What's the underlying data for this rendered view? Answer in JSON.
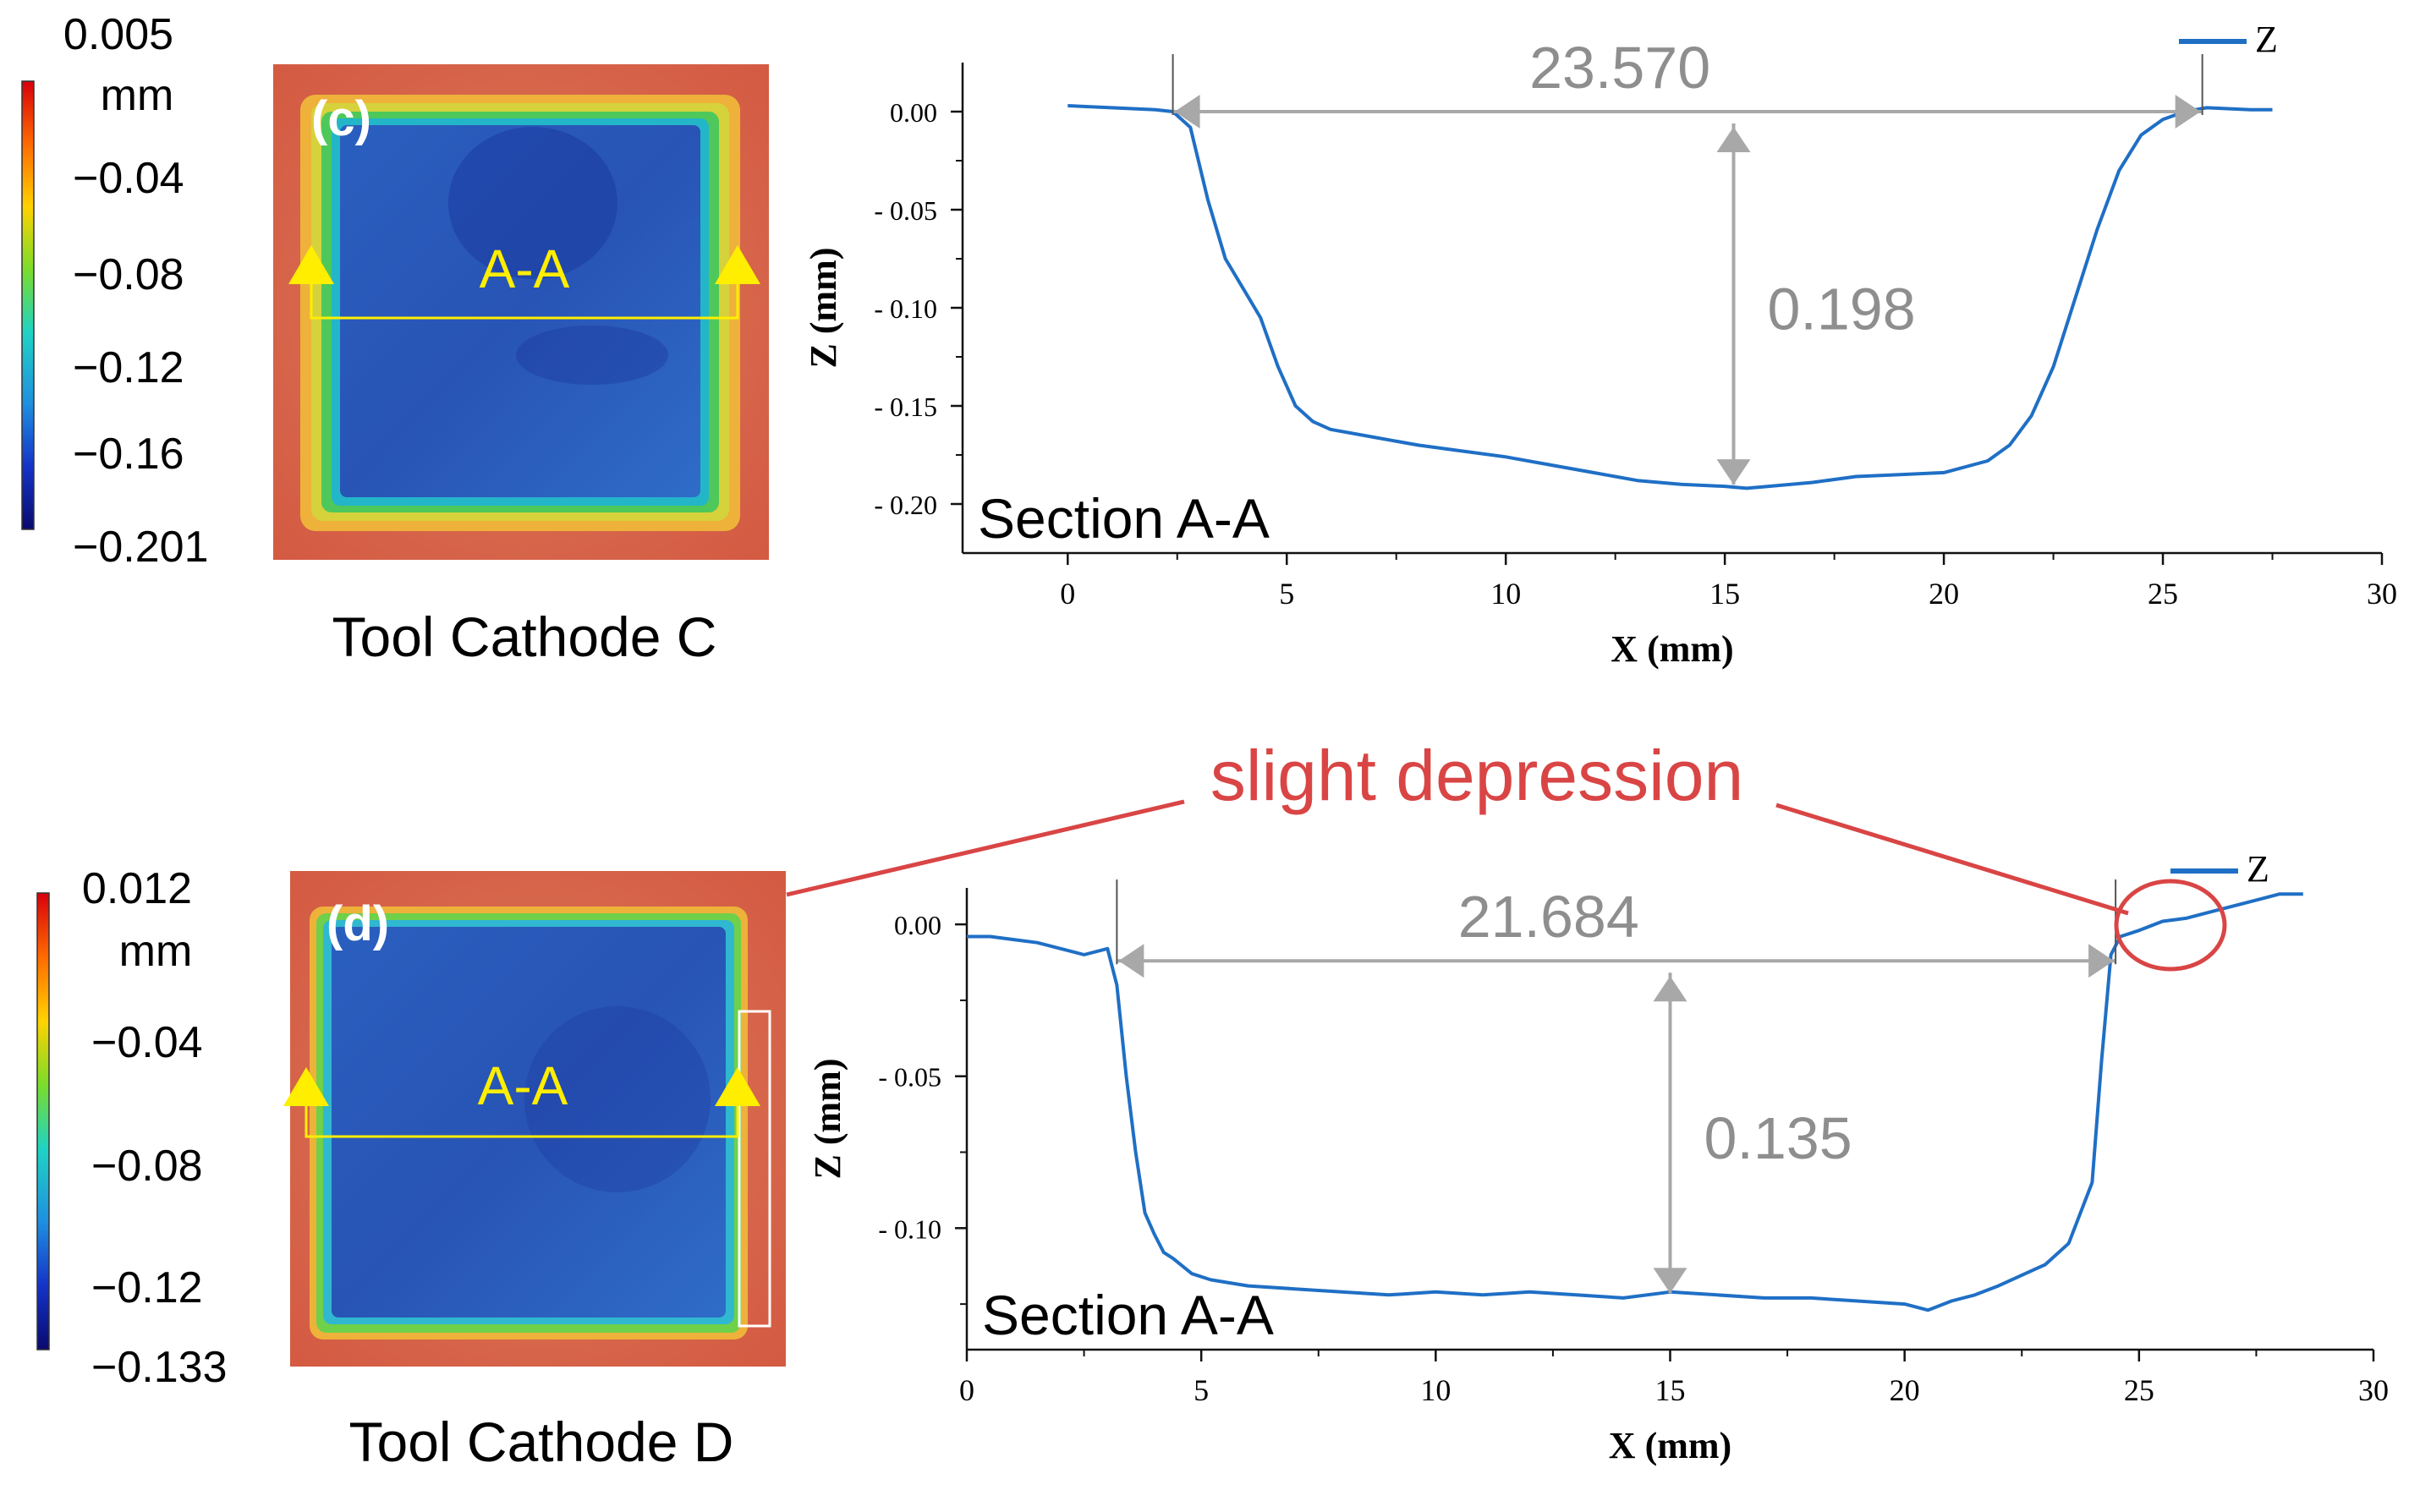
{
  "colors": {
    "curve": "#1f6fc5",
    "dim": "#a8a8a8",
    "dim_text": "#8e8e8e",
    "callout": "#d94545",
    "arrow": "#ffee00",
    "axis": "#111111"
  },
  "colorbar_c": {
    "stops": [
      "0.005",
      "mm",
      "−0.04",
      "−0.08",
      "−0.12",
      "−0.16",
      "−0.201"
    ]
  },
  "colorbar_d": {
    "stops": [
      "0.012",
      "mm",
      "−0.04",
      "−0.08",
      "−0.12",
      "−0.133"
    ]
  },
  "cathode_c": {
    "badge": "(c)",
    "section": "A-A",
    "caption": "Tool Cathode C"
  },
  "cathode_d": {
    "badge": "(d)",
    "section": "A-A",
    "caption": "Tool Cathode D"
  },
  "callout": {
    "text": "slight depression"
  },
  "chart_data": [
    {
      "type": "line",
      "title": "Section A-A",
      "xlabel": "X (mm)",
      "ylabel": "Z (mm)",
      "xlim": [
        -2.4,
        30
      ],
      "ylim": [
        -0.225,
        0.025
      ],
      "xticks": [
        0,
        5,
        10,
        15,
        20,
        25,
        30
      ],
      "yticks": [
        0.0,
        -0.05,
        -0.1,
        -0.15,
        -0.2
      ],
      "ytick_labels": [
        "0.00",
        "- 0.05",
        "- 0.10",
        "- 0.15",
        "- 0.20"
      ],
      "legend": "Z",
      "series": [
        {
          "name": "Z",
          "x": [
            0,
            1,
            2,
            2.4,
            2.8,
            3.2,
            3.6,
            4.0,
            4.4,
            4.8,
            5.2,
            5.6,
            6,
            7,
            8,
            9,
            10,
            11,
            12,
            13,
            14,
            15,
            15.5,
            16,
            17,
            18,
            19,
            20,
            21,
            21.5,
            22,
            22.5,
            23,
            23.5,
            24,
            24.5,
            25,
            25.5,
            26,
            27,
            27.5
          ],
          "y": [
            0.003,
            0.002,
            0.001,
            0,
            -0.008,
            -0.045,
            -0.075,
            -0.09,
            -0.105,
            -0.13,
            -0.15,
            -0.158,
            -0.162,
            -0.166,
            -0.17,
            -0.173,
            -0.176,
            -0.18,
            -0.184,
            -0.188,
            -0.19,
            -0.191,
            -0.192,
            -0.191,
            -0.189,
            -0.186,
            -0.185,
            -0.184,
            -0.178,
            -0.17,
            -0.155,
            -0.13,
            -0.095,
            -0.06,
            -0.03,
            -0.012,
            -0.004,
            0,
            0.002,
            0.001,
            0.001
          ]
        }
      ],
      "dimensions": {
        "width": "23.570",
        "width_from": 2.4,
        "width_to": 25.9,
        "depth": "0.198",
        "depth_x": 15.2,
        "depth_top": 0.0,
        "depth_bottom": -0.191
      }
    },
    {
      "type": "line",
      "title": "Section A-A",
      "xlabel": "X (mm)",
      "ylabel": "Z (mm)",
      "xlim": [
        0,
        30
      ],
      "ylim": [
        -0.14,
        0.012
      ],
      "xticks": [
        0,
        5,
        10,
        15,
        20,
        25,
        30
      ],
      "yticks": [
        0.0,
        -0.05,
        -0.1
      ],
      "ytick_labels": [
        "0.00",
        "- 0.05",
        "- 0.10"
      ],
      "legend": "Z",
      "series": [
        {
          "name": "Z",
          "x": [
            0,
            0.5,
            1,
            1.5,
            2,
            2.5,
            3,
            3.2,
            3.4,
            3.6,
            3.8,
            4.0,
            4.2,
            4.4,
            4.8,
            5.2,
            6,
            7,
            8,
            9,
            10,
            11,
            12,
            13,
            14,
            15,
            16,
            17,
            18,
            19,
            20,
            20.5,
            21,
            21.5,
            22,
            23,
            23.5,
            24,
            24.2,
            24.4,
            24.6,
            25,
            25.5,
            26,
            26.5,
            27,
            27.5,
            28,
            28.5
          ],
          "y": [
            -0.004,
            -0.004,
            -0.005,
            -0.006,
            -0.008,
            -0.01,
            -0.008,
            -0.02,
            -0.05,
            -0.075,
            -0.095,
            -0.102,
            -0.108,
            -0.11,
            -0.115,
            -0.117,
            -0.119,
            -0.12,
            -0.121,
            -0.122,
            -0.121,
            -0.122,
            -0.121,
            -0.122,
            -0.123,
            -0.121,
            -0.122,
            -0.123,
            -0.123,
            -0.124,
            -0.125,
            -0.127,
            -0.124,
            -0.122,
            -0.119,
            -0.112,
            -0.105,
            -0.085,
            -0.045,
            -0.01,
            -0.004,
            -0.002,
            0.001,
            0.002,
            0.004,
            0.006,
            0.008,
            0.01,
            0.01
          ]
        }
      ],
      "dimensions": {
        "width": "21.684",
        "width_from": 3.2,
        "width_to": 24.5,
        "depth": "0.135",
        "depth_x": 15.0,
        "depth_top": -0.012,
        "depth_bottom": -0.122
      }
    }
  ]
}
